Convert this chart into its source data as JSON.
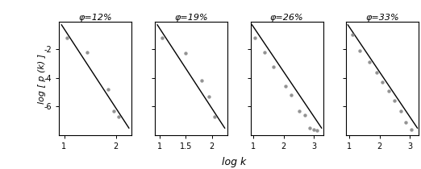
{
  "panels": [
    {
      "title": "φ=12%",
      "xlim": [
        0.9,
        2.3
      ],
      "xticks": [
        1,
        2
      ],
      "xticklabels": [
        "1",
        "2"
      ],
      "scatter_x": [
        1.05,
        1.45,
        1.85,
        1.95,
        2.05
      ],
      "scatter_y": [
        -1.2,
        -2.2,
        -4.8,
        -6.3,
        -6.7
      ],
      "line_x": [
        0.95,
        2.25
      ],
      "line_y": [
        -0.3,
        -7.5
      ]
    },
    {
      "title": "φ=19%",
      "xlim": [
        0.9,
        2.3
      ],
      "xticks": [
        1,
        1.5,
        2
      ],
      "xticklabels": [
        "1",
        "1.5",
        "2"
      ],
      "scatter_x": [
        1.05,
        1.5,
        1.8,
        1.95,
        2.05
      ],
      "scatter_y": [
        -1.2,
        -2.3,
        -4.2,
        -5.3,
        -6.7
      ],
      "line_x": [
        0.95,
        2.25
      ],
      "line_y": [
        -0.3,
        -7.5
      ]
    },
    {
      "title": "φ=26%",
      "xlim": [
        0.9,
        3.3
      ],
      "xticks": [
        1,
        2,
        3
      ],
      "xticklabels": [
        "1",
        "2",
        "3"
      ],
      "scatter_x": [
        1.05,
        1.35,
        1.65,
        2.05,
        2.25,
        2.5,
        2.7,
        2.85,
        3.0,
        3.1
      ],
      "scatter_y": [
        -1.2,
        -2.2,
        -3.2,
        -4.6,
        -5.2,
        -6.3,
        -6.6,
        -7.5,
        -7.6,
        -7.65
      ],
      "line_x": [
        0.95,
        3.25
      ],
      "line_y": [
        -0.3,
        -7.5
      ]
    },
    {
      "title": "φ=33%",
      "xlim": [
        0.9,
        3.3
      ],
      "xticks": [
        1,
        2,
        3
      ],
      "xticklabels": [
        "1",
        "2",
        "3"
      ],
      "scatter_x": [
        1.1,
        1.35,
        1.65,
        1.9,
        2.1,
        2.3,
        2.5,
        2.7,
        2.85,
        3.05
      ],
      "scatter_y": [
        -1.0,
        -2.1,
        -2.9,
        -3.6,
        -4.3,
        -4.9,
        -5.6,
        -6.3,
        -7.1,
        -7.6
      ],
      "line_x": [
        0.95,
        3.25
      ],
      "line_y": [
        -0.3,
        -7.5
      ]
    }
  ],
  "ylabel": "log [ p (k) ]",
  "xlabel": "log k",
  "scatter_color": "#808080",
  "line_color": "#000000",
  "ylim": [
    -8.0,
    -0.1
  ],
  "yticks": [
    -2,
    -4,
    -6
  ],
  "yticklabels": [
    "-2",
    "-4",
    "-6"
  ],
  "background": "#ffffff",
  "title_fontsize": 8,
  "tick_fontsize": 7,
  "ylabel_fontsize": 8,
  "xlabel_fontsize": 9
}
